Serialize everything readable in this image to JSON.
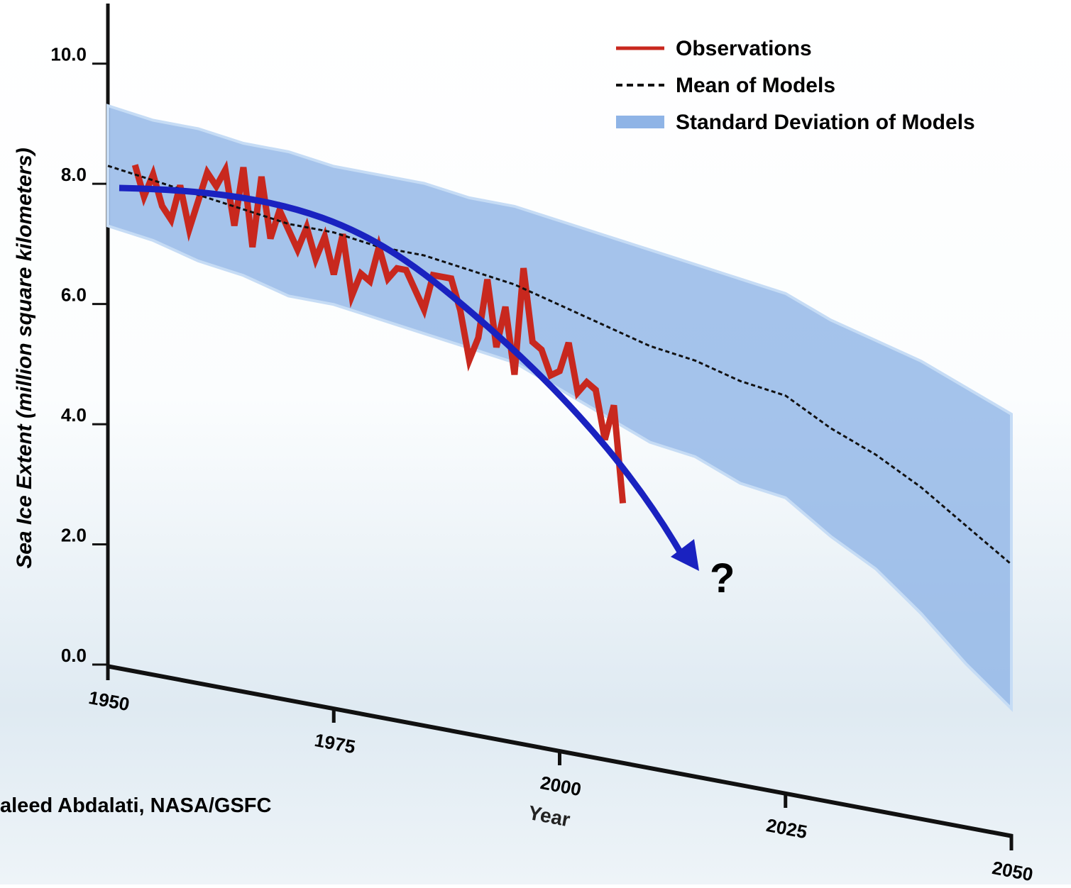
{
  "chart_data": {
    "type": "line",
    "ylabel": "Sea Ice Extent (million square kilometers)",
    "xlabel": "Year",
    "credit": "aleed Abdalati, NASA/GSFC",
    "annotation": "?",
    "xlim": [
      1950,
      2050
    ],
    "xticks": [
      1950,
      1975,
      2000,
      2025,
      2050
    ],
    "ylim": [
      0,
      11
    ],
    "yticks": [
      {
        "value": 0,
        "label": "0.0"
      },
      {
        "value": 2,
        "label": "2.0"
      },
      {
        "value": 4,
        "label": "4.0"
      },
      {
        "value": 6,
        "label": "6.0"
      },
      {
        "value": 8,
        "label": "8.0"
      },
      {
        "value": 10,
        "label": "10.0"
      }
    ],
    "series": [
      {
        "name": "Observations",
        "color": "#c8281e",
        "x": [
          1953,
          1954,
          1955,
          1956,
          1957,
          1958,
          1959,
          1960,
          1961,
          1962,
          1963,
          1964,
          1965,
          1966,
          1967,
          1968,
          1969,
          1970,
          1971,
          1972,
          1973,
          1974,
          1975,
          1976,
          1977,
          1978,
          1979,
          1980,
          1981,
          1982,
          1983,
          1984,
          1985,
          1986,
          1987,
          1988,
          1989,
          1990,
          1991,
          1992,
          1993,
          1994,
          1995,
          1996,
          1997,
          1998,
          1999,
          2000,
          2001,
          2002,
          2003,
          2004,
          2005,
          2006,
          2007
        ],
        "values": [
          8.4,
          7.9,
          8.3,
          7.8,
          7.6,
          8.2,
          7.5,
          8.0,
          8.5,
          8.3,
          8.6,
          7.7,
          8.7,
          7.4,
          8.6,
          7.6,
          8.1,
          7.8,
          7.5,
          7.9,
          7.4,
          7.8,
          7.2,
          7.9,
          6.9,
          7.3,
          7.2,
          7.8,
          7.3,
          7.5,
          7.5,
          7.2,
          6.9,
          7.5,
          7.5,
          7.5,
          7.0,
          6.2,
          6.6,
          7.6,
          6.5,
          7.2,
          6.1,
          7.9,
          6.7,
          6.6,
          6.2,
          6.3,
          6.8,
          6.0,
          6.2,
          6.1,
          5.3,
          5.9,
          4.3
        ]
      },
      {
        "name": "Mean of Models",
        "color": "#111111",
        "x": [
          1950,
          1955,
          1960,
          1965,
          1970,
          1975,
          1980,
          1985,
          1990,
          1995,
          2000,
          2005,
          2010,
          2015,
          2020,
          2025,
          2030,
          2035,
          2040,
          2045,
          2050
        ],
        "values": [
          8.3,
          8.2,
          8.1,
          8.0,
          7.9,
          7.9,
          7.8,
          7.8,
          7.7,
          7.6,
          7.4,
          7.2,
          7.0,
          6.9,
          6.7,
          6.6,
          6.2,
          5.9,
          5.5,
          5.0,
          4.5
        ]
      },
      {
        "name": "Standard Deviation of Models",
        "color": "#8fb4e6",
        "x": [
          1950,
          1955,
          1960,
          1965,
          1970,
          1975,
          1980,
          1985,
          1990,
          1995,
          2000,
          2005,
          2010,
          2015,
          2020,
          2025,
          2030,
          2035,
          2040,
          2045,
          2050
        ],
        "upper": [
          9.3,
          9.2,
          9.2,
          9.1,
          9.1,
          9.0,
          9.0,
          9.0,
          8.9,
          8.9,
          8.8,
          8.7,
          8.6,
          8.5,
          8.4,
          8.3,
          8.0,
          7.8,
          7.6,
          7.3,
          7.0
        ],
        "lower": [
          7.3,
          7.2,
          7.0,
          6.9,
          6.7,
          6.7,
          6.6,
          6.5,
          6.4,
          6.3,
          6.0,
          5.7,
          5.4,
          5.3,
          5.0,
          4.9,
          4.4,
          4.0,
          3.4,
          2.7,
          2.1
        ]
      }
    ]
  }
}
